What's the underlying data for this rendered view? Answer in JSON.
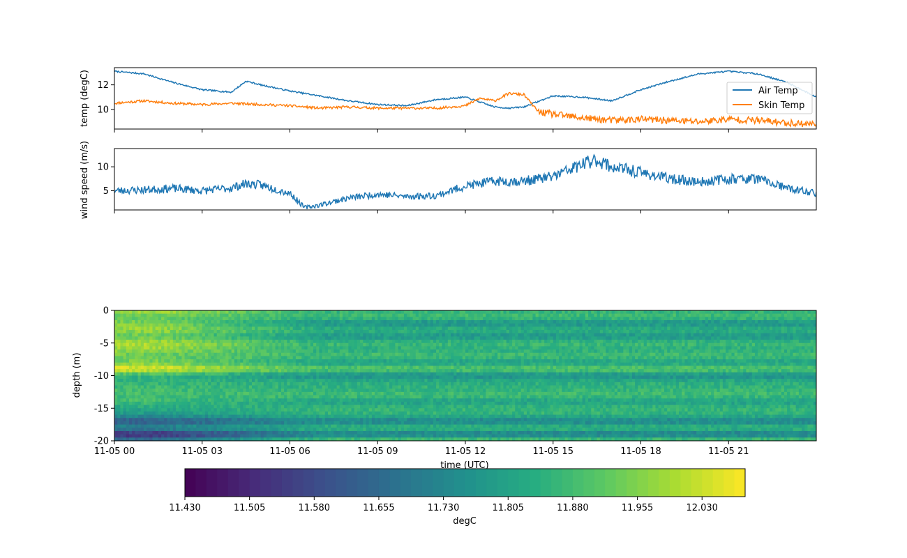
{
  "chart_data": [
    {
      "type": "line",
      "title": "",
      "xlabel": "",
      "ylabel": "temp (degC)",
      "xlim": [
        "11-05 00:00",
        "11-05 24:00"
      ],
      "ylim": [
        8.4,
        13.4
      ],
      "yticks": [
        "10",
        "12"
      ],
      "legend_position": "right",
      "grid": false,
      "series": [
        {
          "name": "Air Temp",
          "color": "#1f77b4",
          "x": [
            0,
            1,
            2,
            3,
            4,
            4.5,
            5,
            6,
            7,
            8,
            9,
            10,
            11,
            12,
            13,
            13.5,
            14,
            15,
            16,
            17,
            18,
            19,
            20,
            21,
            22,
            23,
            24
          ],
          "y": [
            13.1,
            12.9,
            12.2,
            11.6,
            11.4,
            12.3,
            12.0,
            11.5,
            11.1,
            10.7,
            10.4,
            10.3,
            10.8,
            11.0,
            10.2,
            10.1,
            10.2,
            11.1,
            11.0,
            10.7,
            11.6,
            12.3,
            12.9,
            13.1,
            12.9,
            12.2,
            11.0
          ]
        },
        {
          "name": "Skin Temp",
          "color": "#ff7f0e",
          "x": [
            0,
            1,
            2,
            3,
            4,
            5,
            6,
            7,
            8,
            9,
            10,
            11,
            12,
            12.5,
            13,
            13.5,
            14,
            14.5,
            15,
            16,
            17,
            18,
            19,
            20,
            21,
            22,
            23,
            24
          ],
          "y": [
            10.5,
            10.7,
            10.5,
            10.4,
            10.5,
            10.4,
            10.3,
            10.1,
            10.2,
            10.1,
            10.1,
            10.1,
            10.3,
            10.9,
            10.7,
            11.3,
            11.2,
            9.8,
            9.6,
            9.3,
            9.1,
            9.2,
            9.1,
            9.0,
            9.2,
            9.1,
            8.9,
            8.8
          ]
        }
      ]
    },
    {
      "type": "line",
      "title": "",
      "xlabel": "",
      "ylabel": "wind speed (m/s)",
      "xlim": [
        "11-05 00:00",
        "11-05 24:00"
      ],
      "ylim": [
        1,
        13.8
      ],
      "yticks": [
        "5",
        "10"
      ],
      "grid": false,
      "series": [
        {
          "color": "#1f77b4",
          "x": [
            0,
            1,
            2,
            3,
            4,
            4.5,
            5,
            6,
            6.5,
            7,
            8,
            9,
            10,
            11,
            12,
            13,
            14,
            15,
            16,
            16.5,
            17,
            18,
            19,
            20,
            21,
            22,
            23,
            24
          ],
          "y": [
            5.0,
            5.2,
            5.5,
            5.0,
            5.6,
            6.5,
            6.2,
            4.5,
            1.5,
            2.0,
            3.5,
            4.3,
            3.8,
            4.0,
            6.0,
            7.0,
            7.0,
            8.0,
            10.5,
            11.5,
            10.0,
            8.8,
            7.5,
            6.8,
            7.5,
            7.5,
            5.5,
            4.5
          ]
        }
      ]
    },
    {
      "type": "heatmap",
      "title": "",
      "xlabel": "time (UTC)",
      "ylabel": "depth (m)",
      "xlim": [
        "11-05 00:00",
        "11-05 24:00"
      ],
      "ylim": [
        -20,
        0
      ],
      "xticks": [
        "11-05 00",
        "11-05 03",
        "11-05 06",
        "11-05 09",
        "11-05 12",
        "11-05 15",
        "11-05 18",
        "11-05 21"
      ],
      "yticks": [
        "0",
        "-5",
        "-10",
        "-15",
        "-20"
      ],
      "colorscale": "viridis",
      "colorbar": {
        "label": "degC",
        "range": [
          11.43,
          12.08
        ],
        "ticks": [
          "11.430",
          "11.505",
          "11.580",
          "11.655",
          "11.730",
          "11.805",
          "11.880",
          "11.955",
          "12.030"
        ]
      },
      "depth_profile_early": [
        [
          0,
          12.0
        ],
        [
          -1,
          11.92
        ],
        [
          -2,
          11.95
        ],
        [
          -3,
          11.98
        ],
        [
          -4,
          11.92
        ],
        [
          -5,
          12.0
        ],
        [
          -6,
          11.98
        ],
        [
          -7,
          11.92
        ],
        [
          -8,
          11.95
        ],
        [
          -9,
          12.06
        ],
        [
          -10,
          11.85
        ],
        [
          -11,
          11.85
        ],
        [
          -12,
          11.88
        ],
        [
          -13,
          11.88
        ],
        [
          -14,
          11.88
        ],
        [
          -15,
          11.82
        ],
        [
          -16,
          11.78
        ],
        [
          -17,
          11.6
        ],
        [
          -18,
          11.75
        ],
        [
          -19,
          11.5
        ],
        [
          -20,
          11.7
        ]
      ],
      "depth_profile_late": [
        [
          0,
          11.85
        ],
        [
          -1,
          11.88
        ],
        [
          -2,
          11.76
        ],
        [
          -3,
          11.85
        ],
        [
          -4,
          11.77
        ],
        [
          -5,
          11.87
        ],
        [
          -6,
          11.84
        ],
        [
          -7,
          11.88
        ],
        [
          -8,
          11.8
        ],
        [
          -9,
          11.92
        ],
        [
          -10,
          11.75
        ],
        [
          -11,
          11.84
        ],
        [
          -12,
          11.85
        ],
        [
          -13,
          11.88
        ],
        [
          -14,
          11.8
        ],
        [
          -15,
          11.86
        ],
        [
          -16,
          11.85
        ],
        [
          -17,
          11.72
        ],
        [
          -18,
          11.87
        ],
        [
          -19,
          11.7
        ],
        [
          -20,
          11.92
        ]
      ]
    }
  ]
}
